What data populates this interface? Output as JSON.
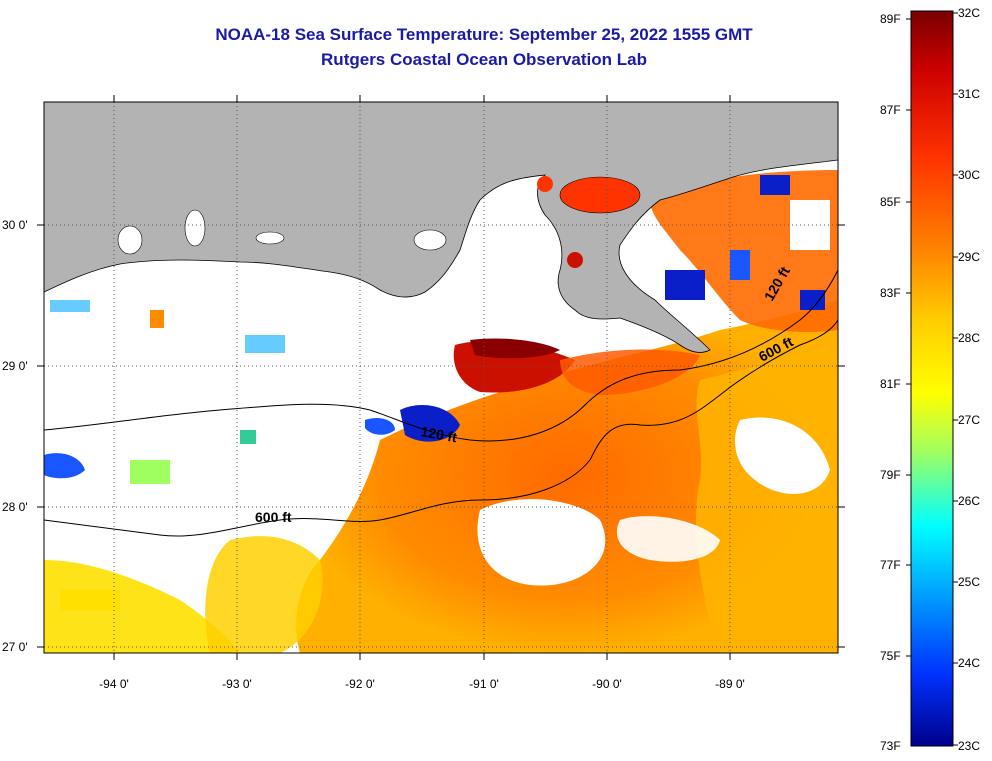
{
  "title": {
    "line1": "NOAA-18 Sea Surface Temperature:  September 25, 2022 1555 GMT",
    "line2": "Rutgers Coastal Ocean Observation Lab"
  },
  "map": {
    "lon_labels": [
      "-94 0'",
      "-93 0'",
      "-92 0'",
      "-91 0'",
      "-90 0'",
      "-89 0'"
    ],
    "lat_labels": [
      "30 0'",
      "29 0'",
      "28 0'",
      "27 0'"
    ],
    "contour_labels": [
      "120 ft",
      "600 ft",
      "600 ft",
      "120 ft"
    ],
    "land_color": "#b3b3b3",
    "cloud_color": "#ffffff"
  },
  "colorbar": {
    "f_labels": [
      "89F",
      "87F",
      "85F",
      "83F",
      "81F",
      "79F",
      "77F",
      "75F",
      "73F"
    ],
    "c_labels": [
      "32C",
      "31C",
      "30C",
      "29C",
      "28C",
      "27C",
      "26C",
      "25C",
      "24C",
      "23C"
    ],
    "colors": [
      "#7a0000",
      "#cc0000",
      "#ff3300",
      "#ff8000",
      "#ffcc00",
      "#ffff00",
      "#a0ff60",
      "#00ffff",
      "#0099ff",
      "#0033ff",
      "#00008c"
    ]
  }
}
